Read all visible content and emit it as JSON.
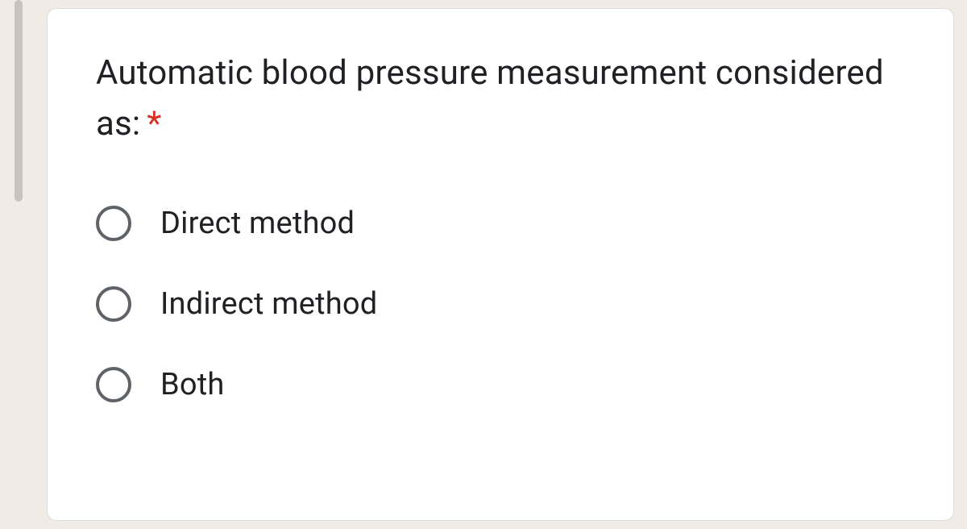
{
  "question": {
    "text": "Automatic blood pressure measurement considered as:",
    "required_marker": "*",
    "options": [
      {
        "label": "Direct method"
      },
      {
        "label": "Indirect method"
      },
      {
        "label": "Both"
      }
    ]
  },
  "colors": {
    "page_background": "#f0ebe5",
    "card_background": "#ffffff",
    "card_border": "#dadce0",
    "text_primary": "#202124",
    "required_asterisk": "#d93025",
    "radio_border": "#5f6368",
    "left_bar": "#c9c3bd"
  },
  "typography": {
    "question_fontsize": 42,
    "option_fontsize": 38,
    "font_family": "Roboto"
  }
}
